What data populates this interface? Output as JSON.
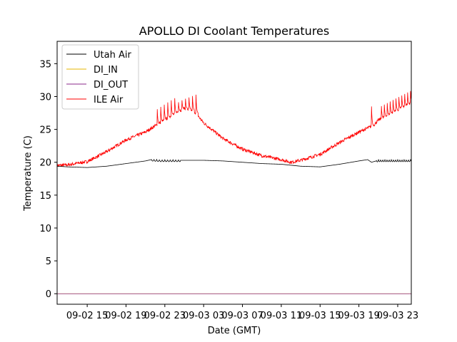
{
  "chart_data": {
    "type": "line",
    "title": "APOLLO DI Coolant Temperatures",
    "xlabel": "Date (GMT)",
    "ylabel": "Temperature (C)",
    "x_units": "hours since 09-02 12:00 GMT",
    "xlim": [
      -0.1,
      36.4
    ],
    "ylim": [
      -1.6,
      38.4
    ],
    "yticks": [
      0,
      5,
      10,
      15,
      20,
      25,
      30,
      35
    ],
    "xticks": [
      {
        "x": 3,
        "label": "09-02 15"
      },
      {
        "x": 7,
        "label": "09-02 19"
      },
      {
        "x": 11,
        "label": "09-02 23"
      },
      {
        "x": 15,
        "label": "09-03 03"
      },
      {
        "x": 19,
        "label": "09-03 07"
      },
      {
        "x": 23,
        "label": "09-03 11"
      },
      {
        "x": 27,
        "label": "09-03 15"
      },
      {
        "x": 31,
        "label": "09-03 19"
      },
      {
        "x": 35,
        "label": "09-03 23"
      }
    ],
    "grid": false,
    "legend_position": "top-left",
    "series": [
      {
        "name": "Utah Air",
        "color": "#000000",
        "points": [
          [
            -0.1,
            19.4
          ],
          [
            1,
            19.3
          ],
          [
            3,
            19.2
          ],
          [
            5,
            19.4
          ],
          [
            7,
            19.8
          ],
          [
            9,
            20.2
          ],
          [
            9.6,
            20.4
          ],
          [
            10.5,
            20.3
          ],
          [
            12.5,
            20.3
          ],
          [
            15,
            20.3
          ],
          [
            17,
            20.2
          ],
          [
            19,
            20.0
          ],
          [
            21,
            19.8
          ],
          [
            23,
            19.7
          ],
          [
            25,
            19.4
          ],
          [
            27,
            19.3
          ],
          [
            29,
            19.7
          ],
          [
            31,
            20.2
          ],
          [
            31.9,
            20.4
          ],
          [
            32.3,
            20.0
          ],
          [
            33,
            20.3
          ],
          [
            34.5,
            20.3
          ],
          [
            36.4,
            20.3
          ]
        ],
        "ripple": [
          {
            "from": 9.6,
            "to": 12.6,
            "amp": 0.3,
            "period": 0.28
          },
          {
            "from": 32.8,
            "to": 36.4,
            "amp": 0.3,
            "period": 0.22
          }
        ]
      },
      {
        "name": "DI_IN",
        "color": "#e6b400",
        "points": [
          [
            -0.1,
            0
          ],
          [
            36.4,
            0
          ]
        ]
      },
      {
        "name": "DI_OUT",
        "color": "#8b2a8b",
        "points": [
          [
            -0.1,
            0
          ],
          [
            36.4,
            0
          ]
        ]
      },
      {
        "name": "ILE Air",
        "color": "#ff0000",
        "points": [
          [
            -0.1,
            19.5
          ],
          [
            1,
            19.6
          ],
          [
            3,
            20.1
          ],
          [
            5,
            21.6
          ],
          [
            7,
            23.4
          ],
          [
            9,
            24.6
          ],
          [
            10.5,
            26.0
          ],
          [
            12,
            27.4
          ],
          [
            13,
            28.2
          ],
          [
            14,
            27.8
          ],
          [
            15,
            26.0
          ],
          [
            17,
            23.6
          ],
          [
            19,
            22.0
          ],
          [
            21,
            21.0
          ],
          [
            23,
            20.4
          ],
          [
            24,
            20.0
          ],
          [
            25,
            20.3
          ],
          [
            27,
            21.2
          ],
          [
            29,
            23.0
          ],
          [
            31,
            24.6
          ],
          [
            32.5,
            25.6
          ],
          [
            33,
            26.4
          ],
          [
            34.5,
            27.6
          ],
          [
            36.4,
            29.0
          ]
        ],
        "spikes": [
          {
            "from": 10.2,
            "to": 14.2,
            "count": 12,
            "peak_start": 29.0,
            "peak_end": 30.8
          },
          {
            "from": 32.3,
            "to": 32.3,
            "count": 1,
            "peak_start": 28.5,
            "peak_end": 28.5
          },
          {
            "from": 33.3,
            "to": 36.3,
            "count": 11,
            "peak_start": 29.3,
            "peak_end": 31.6
          }
        ],
        "noise": 0.25
      }
    ]
  }
}
